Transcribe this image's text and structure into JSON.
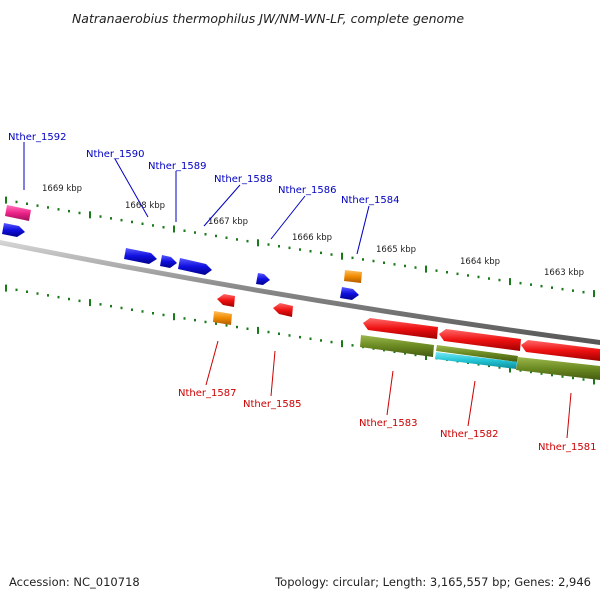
{
  "title": "Natranaerobius thermophilus JW/NM-WN-LF, complete genome",
  "footer": {
    "accession": "Accession: NC_010718",
    "summary": "Topology: circular; Length: 3,165,557 bp; Genes: 2,946"
  },
  "colors": {
    "forward_label": "#0000c0",
    "reverse_label": "#cc0000",
    "tick": "#1a7a1a",
    "backbone": "#808080",
    "blue_gene": "#1010e0",
    "red_gene": "#ee1111",
    "orange_gene": "#f08a00",
    "pink_gene": "#ee2288",
    "olive_gene": "#6b8a22",
    "cyan_gene": "#22c4d4"
  },
  "scale_labels": [
    "1669 kbp",
    "1668 kbp",
    "1667 kbp",
    "1666 kbp",
    "1665 kbp",
    "1664 kbp",
    "1663 kbp"
  ],
  "forward_labels": [
    "Nther_1592",
    "Nther_1590",
    "Nther_1589",
    "Nther_1588",
    "Nther_1586",
    "Nther_1584"
  ],
  "reverse_labels": [
    "Nther_1587",
    "Nther_1585",
    "Nther_1583",
    "Nther_1582",
    "Nther_1581"
  ]
}
